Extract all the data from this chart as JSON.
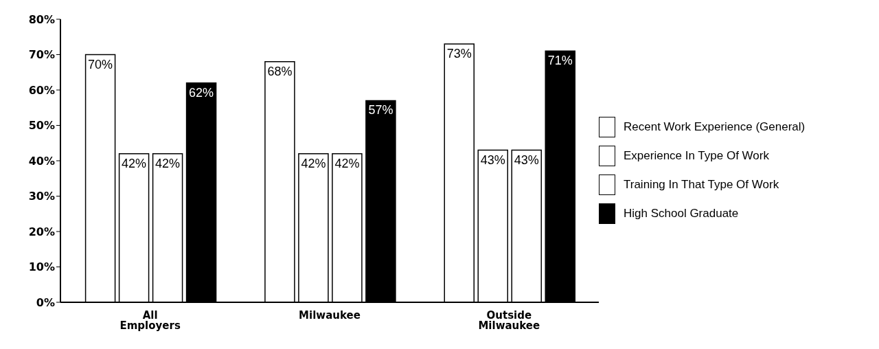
{
  "chart_data": {
    "type": "bar",
    "categories": [
      "All Employers",
      "Milwaukee",
      "Outside Milwaukee"
    ],
    "series": [
      {
        "name": "Recent Work Experience (General)",
        "color": "#ffffff",
        "values": [
          70,
          68,
          73
        ],
        "value_labels": [
          "70%",
          "68%",
          "73%"
        ]
      },
      {
        "name": "Experience In Type Of Work",
        "color": "#ffffff",
        "values": [
          42,
          42,
          43
        ],
        "value_labels": [
          "42%",
          "42%",
          "43%"
        ]
      },
      {
        "name": "Training In That Type Of Work",
        "color": "#ffffff",
        "values": [
          42,
          42,
          43
        ],
        "value_labels": [
          "42%",
          "42%",
          "43%"
        ]
      },
      {
        "name": "High School Graduate",
        "color": "#000000",
        "values": [
          62,
          57,
          71
        ],
        "value_labels": [
          "62%",
          "57%",
          "71%"
        ]
      }
    ],
    "ylim": [
      0,
      80
    ],
    "yticks": [
      {
        "value": 0,
        "label": "0%"
      },
      {
        "value": 10,
        "label": "10%"
      },
      {
        "value": 20,
        "label": "20%"
      },
      {
        "value": 30,
        "label": "30%"
      },
      {
        "value": 40,
        "label": "40%"
      },
      {
        "value": 50,
        "label": "50%"
      },
      {
        "value": 60,
        "label": "60%"
      },
      {
        "value": 70,
        "label": "70%"
      },
      {
        "value": 80,
        "label": "80%"
      }
    ],
    "grid": false,
    "legend": "right"
  }
}
